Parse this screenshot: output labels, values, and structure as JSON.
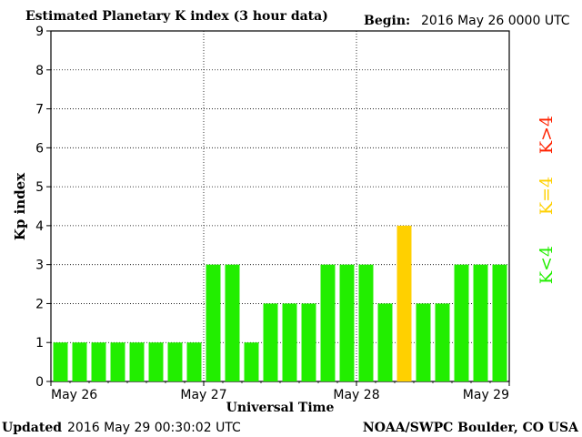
{
  "header": {
    "title": "Estimated Planetary K index (3 hour data)",
    "begin_label": "Begin:",
    "begin_value": "2016 May 26 0000 UTC"
  },
  "footer": {
    "updated_label": "Updated",
    "updated_value": "2016 May 29 00:30:02 UTC",
    "source": "NOAA/SWPC Boulder, CO USA"
  },
  "legend": {
    "red": "K>4",
    "yellow": "K=4",
    "green": "K<4"
  },
  "colors": {
    "green": "#22ee00",
    "yellow": "#ffd000",
    "red": "#ff2200",
    "axis": "#000000",
    "grid": "#000000"
  },
  "chart_data": {
    "type": "bar",
    "title": "Estimated Planetary K index (3 hour data)",
    "xlabel": "Universal Time",
    "ylabel": "Kp index",
    "ylim": [
      0,
      9
    ],
    "yticks": [
      0,
      1,
      2,
      3,
      4,
      5,
      6,
      7,
      8,
      9
    ],
    "xticks": [
      "May 26",
      "May 27",
      "May 28",
      "May 29"
    ],
    "grid": true,
    "legend_placement": "right",
    "values": [
      1,
      1,
      1,
      1,
      1,
      1,
      1,
      1,
      3,
      3,
      1,
      2,
      2,
      2,
      3,
      3,
      3,
      2,
      4,
      2,
      2,
      3,
      3,
      3
    ]
  }
}
